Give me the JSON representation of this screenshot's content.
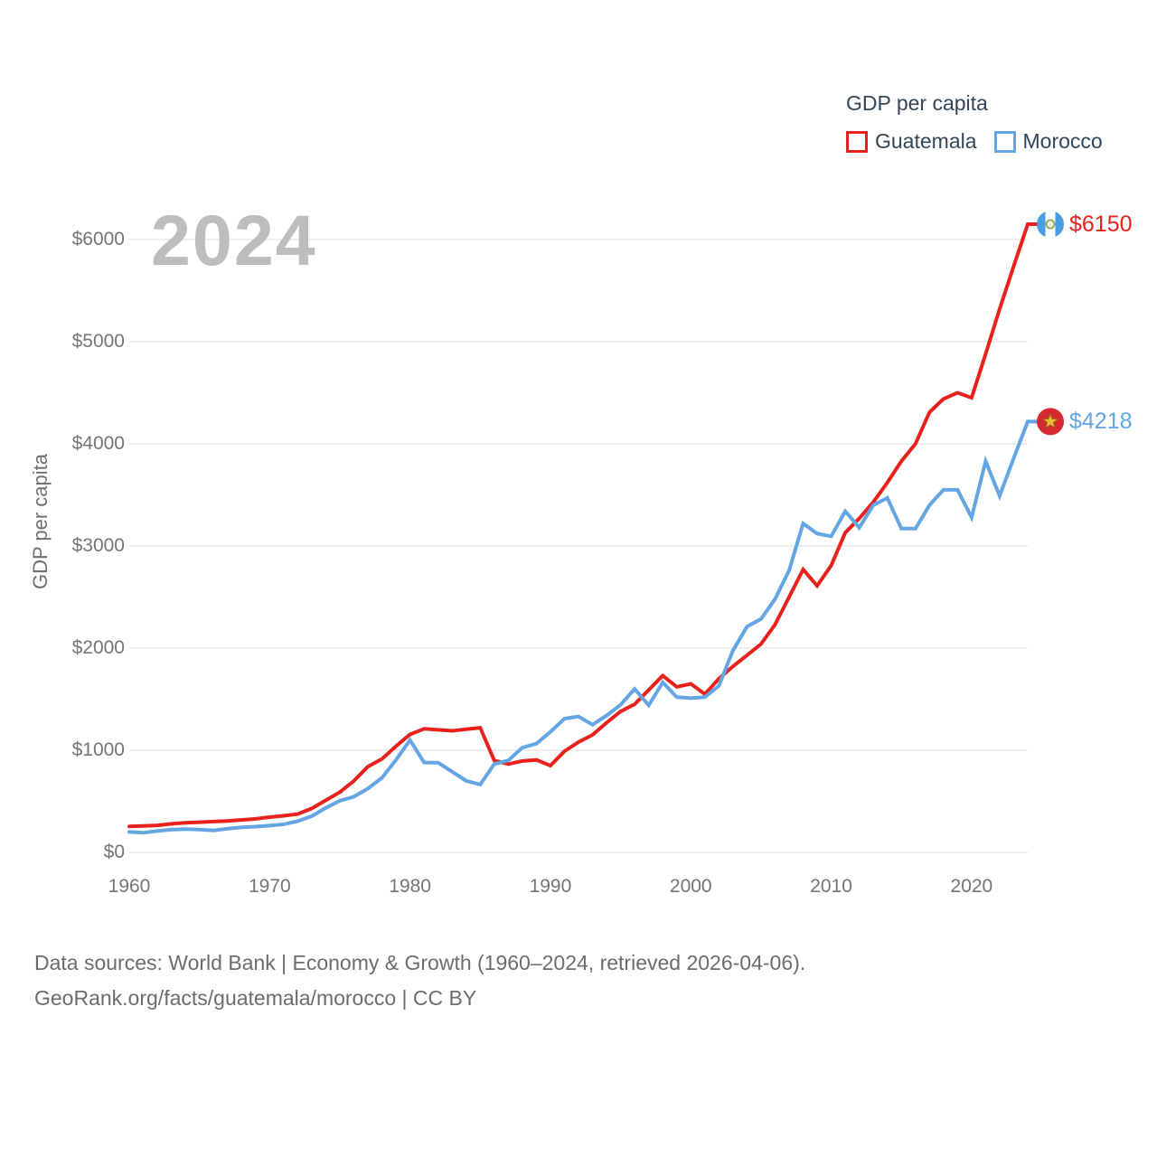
{
  "watermark": "2024",
  "legend": {
    "title": "GDP per capita",
    "items": [
      {
        "label": "Guatemala",
        "color": "#e8211d"
      },
      {
        "label": "Morocco",
        "color": "#64a5e4"
      }
    ]
  },
  "y_axis": {
    "title": "GDP per capita",
    "ticks": [
      "$0",
      "$1000",
      "$2000",
      "$3000",
      "$4000",
      "$5000",
      "$6000"
    ],
    "tick_values": [
      0,
      1000,
      2000,
      3000,
      4000,
      5000,
      6000
    ]
  },
  "x_axis": {
    "ticks": [
      1960,
      1970,
      1980,
      1990,
      2000,
      2010,
      2020
    ]
  },
  "end_labels": [
    {
      "series": "Guatemala",
      "label": "$6150",
      "color": "#e8211d",
      "flag": "guatemala-flag"
    },
    {
      "series": "Morocco",
      "label": "$4218",
      "color": "#64a5e4",
      "flag": "morocco-flag"
    }
  ],
  "footer": {
    "line1": "Data sources: World Bank | Economy & Growth (1960–2024, retrieved 2026-04-06).",
    "line2": "GeoRank.org/facts/guatemala/morocco | CC BY"
  },
  "chart_data": {
    "type": "line",
    "title": "GDP per capita",
    "xlabel": "",
    "ylabel": "GDP per capita",
    "xlim": [
      1960,
      2024
    ],
    "ylim": [
      0,
      6000
    ],
    "grid": true,
    "legend_position": "top-right",
    "x": [
      1960,
      1961,
      1962,
      1963,
      1964,
      1965,
      1966,
      1967,
      1968,
      1969,
      1970,
      1971,
      1972,
      1973,
      1974,
      1975,
      1976,
      1977,
      1978,
      1979,
      1980,
      1981,
      1982,
      1983,
      1984,
      1985,
      1986,
      1987,
      1988,
      1989,
      1990,
      1991,
      1992,
      1993,
      1994,
      1995,
      1996,
      1997,
      1998,
      1999,
      2000,
      2001,
      2002,
      2003,
      2004,
      2005,
      2006,
      2007,
      2008,
      2009,
      2010,
      2011,
      2012,
      2013,
      2014,
      2015,
      2016,
      2017,
      2018,
      2019,
      2020,
      2021,
      2022,
      2023,
      2024
    ],
    "series": [
      {
        "name": "Guatemala",
        "color": "#e8211d",
        "end_label": "$6150",
        "values": [
          255,
          258,
          265,
          280,
          290,
          296,
          302,
          308,
          318,
          328,
          345,
          358,
          375,
          430,
          510,
          590,
          700,
          840,
          915,
          1040,
          1155,
          1210,
          1200,
          1190,
          1205,
          1220,
          900,
          865,
          895,
          905,
          850,
          990,
          1080,
          1150,
          1270,
          1380,
          1450,
          1590,
          1730,
          1620,
          1650,
          1550,
          1700,
          1820,
          1930,
          2040,
          2230,
          2500,
          2770,
          2610,
          2810,
          3130,
          3270,
          3430,
          3620,
          3830,
          4000,
          4310,
          4440,
          4500,
          4450,
          4880,
          5320,
          5740,
          6150
        ]
      },
      {
        "name": "Morocco",
        "color": "#64a5e4",
        "end_label": "$4218",
        "values": [
          200,
          192,
          210,
          222,
          228,
          224,
          215,
          232,
          246,
          252,
          262,
          275,
          305,
          355,
          435,
          505,
          545,
          625,
          730,
          905,
          1100,
          880,
          878,
          790,
          700,
          665,
          865,
          900,
          1025,
          1065,
          1180,
          1310,
          1330,
          1250,
          1340,
          1445,
          1600,
          1440,
          1665,
          1520,
          1510,
          1520,
          1630,
          1975,
          2210,
          2285,
          2480,
          2760,
          3220,
          3120,
          3095,
          3340,
          3180,
          3400,
          3470,
          3170,
          3170,
          3400,
          3550,
          3550,
          3280,
          3830,
          3490,
          3860,
          4218
        ]
      }
    ]
  }
}
